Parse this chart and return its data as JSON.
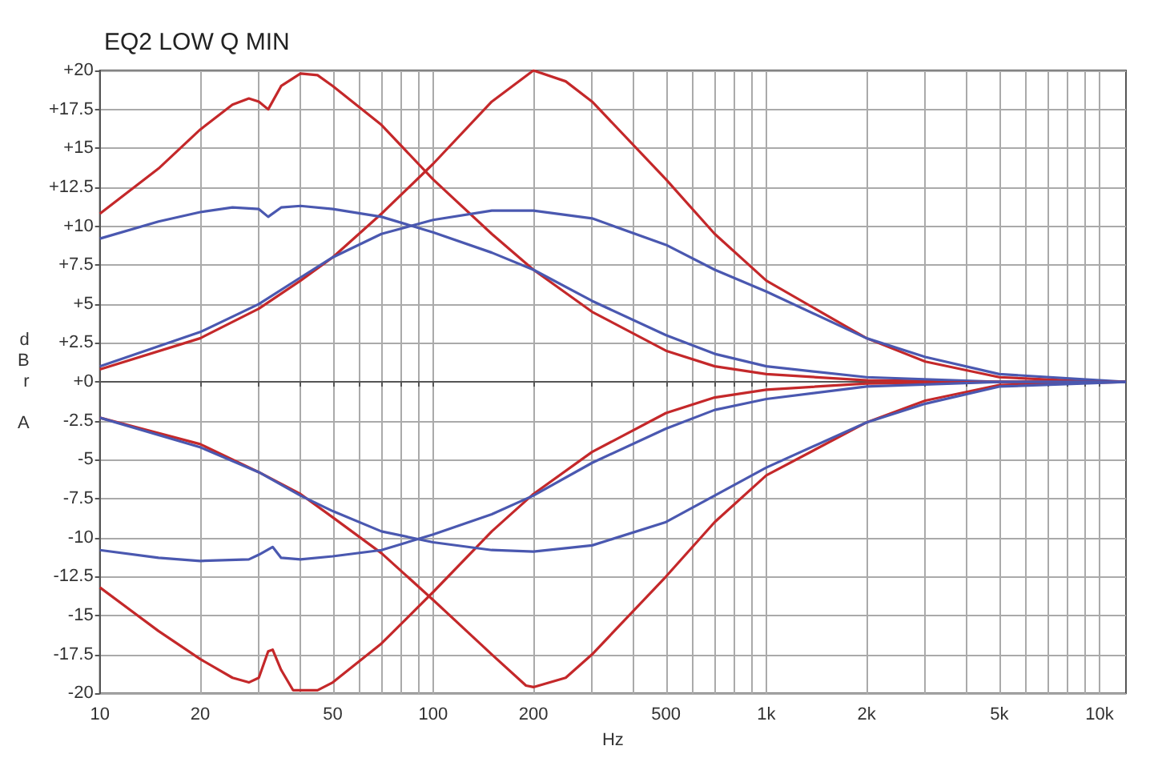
{
  "chart_data": {
    "type": "line",
    "title": "EQ2 LOW Q MIN",
    "xlabel": "Hz",
    "ylabel": "dBr A",
    "log": "x",
    "grid": true,
    "xlim": [
      10,
      12000
    ],
    "ylim": [
      -20,
      20
    ],
    "xticks": [
      {
        "value": 10,
        "label": "10"
      },
      {
        "value": 20,
        "label": "20"
      },
      {
        "value": 30,
        "label": null
      },
      {
        "value": 40,
        "label": null
      },
      {
        "value": 50,
        "label": "50"
      },
      {
        "value": 60,
        "label": null
      },
      {
        "value": 70,
        "label": null
      },
      {
        "value": 80,
        "label": null
      },
      {
        "value": 90,
        "label": null
      },
      {
        "value": 100,
        "label": "100"
      },
      {
        "value": 200,
        "label": "200"
      },
      {
        "value": 300,
        "label": null
      },
      {
        "value": 400,
        "label": null
      },
      {
        "value": 500,
        "label": "500"
      },
      {
        "value": 600,
        "label": null
      },
      {
        "value": 700,
        "label": null
      },
      {
        "value": 800,
        "label": null
      },
      {
        "value": 900,
        "label": null
      },
      {
        "value": 1000,
        "label": "1k"
      },
      {
        "value": 2000,
        "label": "2k"
      },
      {
        "value": 3000,
        "label": null
      },
      {
        "value": 4000,
        "label": null
      },
      {
        "value": 5000,
        "label": "5k"
      },
      {
        "value": 6000,
        "label": null
      },
      {
        "value": 7000,
        "label": null
      },
      {
        "value": 8000,
        "label": null
      },
      {
        "value": 9000,
        "label": null
      },
      {
        "value": 10000,
        "label": "10k"
      }
    ],
    "yticks": [
      {
        "value": 20,
        "label": "+20"
      },
      {
        "value": 17.5,
        "label": "+17.5"
      },
      {
        "value": 15,
        "label": "+15"
      },
      {
        "value": 12.5,
        "label": "+12.5"
      },
      {
        "value": 10,
        "label": "+10"
      },
      {
        "value": 7.5,
        "label": "+7.5"
      },
      {
        "value": 5,
        "label": "+5"
      },
      {
        "value": 2.5,
        "label": "+2.5"
      },
      {
        "value": 0,
        "label": "+0"
      },
      -2.5,
      -5,
      -7.5,
      -10,
      -12.5,
      -15,
      -17.5,
      -20
    ],
    "series": [
      {
        "color": "#c4282a",
        "x": [
          10,
          15,
          20,
          25,
          28,
          30,
          32,
          35,
          40,
          45,
          50,
          70,
          100,
          150,
          200,
          300,
          500,
          700,
          1000,
          2000,
          5000,
          12000
        ],
        "values": [
          10.8,
          13.7,
          16.2,
          17.8,
          18.2,
          18.0,
          17.5,
          19.0,
          19.8,
          19.7,
          19.0,
          16.5,
          13.0,
          9.5,
          7.2,
          4.5,
          2.0,
          1.0,
          0.5,
          0.1,
          0,
          0
        ]
      },
      {
        "color": "#c4282a",
        "x": [
          10,
          20,
          30,
          40,
          50,
          70,
          100,
          150,
          200,
          250,
          300,
          500,
          700,
          1000,
          2000,
          3000,
          5000,
          10000,
          12000
        ],
        "values": [
          0.8,
          2.8,
          4.7,
          6.5,
          8.0,
          10.8,
          14.0,
          18.0,
          20.0,
          19.3,
          18.0,
          13.0,
          9.5,
          6.5,
          2.8,
          1.3,
          0.3,
          0,
          0
        ]
      },
      {
        "color": "#4a58b0",
        "x": [
          10,
          15,
          20,
          25,
          30,
          32,
          35,
          40,
          50,
          70,
          100,
          150,
          200,
          300,
          500,
          700,
          1000,
          2000,
          5000,
          12000
        ],
        "values": [
          9.2,
          10.3,
          10.9,
          11.2,
          11.1,
          10.6,
          11.2,
          11.3,
          11.1,
          10.6,
          9.6,
          8.3,
          7.2,
          5.2,
          3.0,
          1.8,
          1.0,
          0.3,
          0,
          0
        ]
      },
      {
        "color": "#4a58b0",
        "x": [
          10,
          20,
          30,
          40,
          50,
          70,
          100,
          150,
          200,
          300,
          500,
          700,
          1000,
          2000,
          3000,
          5000,
          10000,
          12000
        ],
        "values": [
          1.0,
          3.2,
          5.0,
          6.7,
          8.0,
          9.5,
          10.4,
          11.0,
          11.0,
          10.5,
          8.8,
          7.2,
          5.8,
          2.8,
          1.6,
          0.5,
          0.1,
          0
        ]
      },
      {
        "color": "#c4282a",
        "x": [
          10,
          15,
          20,
          25,
          28,
          30,
          32,
          33,
          35,
          38,
          45,
          50,
          70,
          100,
          150,
          200,
          300,
          500,
          700,
          1000,
          2000,
          5000,
          12000
        ],
        "values": [
          -13.2,
          -16.0,
          -17.8,
          -19.0,
          -19.3,
          -19.0,
          -17.3,
          -17.2,
          -18.5,
          -19.8,
          -19.8,
          -19.3,
          -16.8,
          -13.5,
          -9.6,
          -7.2,
          -4.5,
          -2.0,
          -1.0,
          -0.5,
          -0.1,
          0,
          0
        ]
      },
      {
        "color": "#c4282a",
        "x": [
          10,
          20,
          30,
          40,
          50,
          70,
          100,
          150,
          190,
          200,
          250,
          300,
          500,
          700,
          1000,
          2000,
          3000,
          5000,
          12000
        ],
        "values": [
          -2.3,
          -4.0,
          -5.8,
          -7.2,
          -8.7,
          -11.0,
          -14.0,
          -17.5,
          -19.5,
          -19.6,
          -19.0,
          -17.5,
          -12.5,
          -9.0,
          -6.0,
          -2.6,
          -1.2,
          -0.2,
          0
        ]
      },
      {
        "color": "#4a58b0",
        "x": [
          10,
          15,
          20,
          28,
          30,
          33,
          35,
          40,
          50,
          70,
          100,
          150,
          200,
          300,
          500,
          700,
          1000,
          2000,
          5000,
          12000
        ],
        "values": [
          -10.8,
          -11.3,
          -11.5,
          -11.4,
          -11.1,
          -10.6,
          -11.3,
          -11.4,
          -11.2,
          -10.8,
          -9.8,
          -8.5,
          -7.3,
          -5.2,
          -3.0,
          -1.8,
          -1.1,
          -0.3,
          0,
          0
        ]
      },
      {
        "color": "#4a58b0",
        "x": [
          10,
          20,
          30,
          40,
          50,
          70,
          100,
          150,
          200,
          300,
          500,
          700,
          1000,
          2000,
          3000,
          5000,
          12000
        ],
        "values": [
          -2.3,
          -4.2,
          -5.8,
          -7.3,
          -8.3,
          -9.6,
          -10.3,
          -10.8,
          -10.9,
          -10.5,
          -9.0,
          -7.3,
          -5.5,
          -2.6,
          -1.4,
          -0.3,
          0
        ]
      }
    ]
  }
}
